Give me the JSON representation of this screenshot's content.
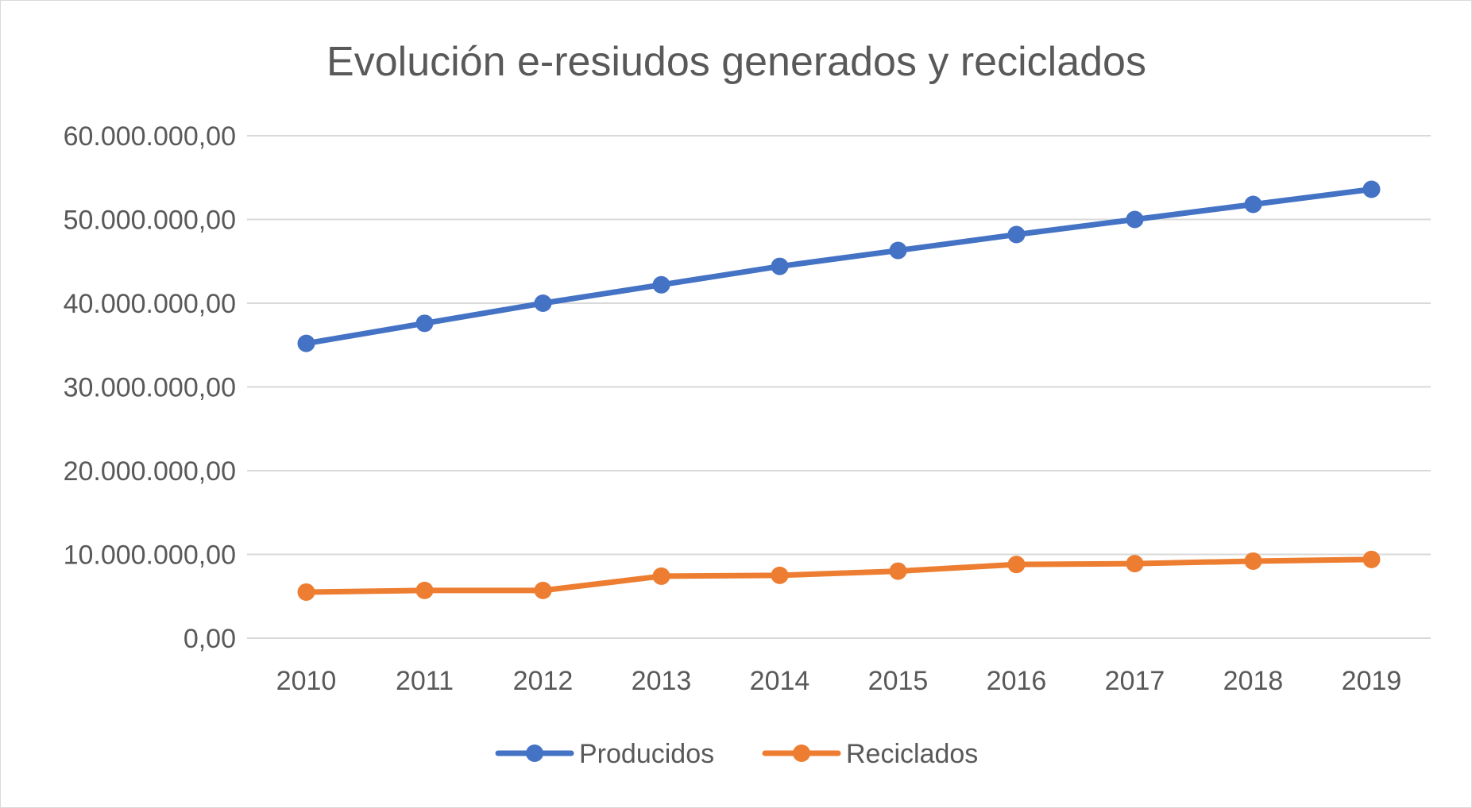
{
  "chart_data": {
    "type": "line",
    "title": "Evolución e-resiudos generados  y reciclados",
    "xlabel": "",
    "ylabel": "",
    "categories": [
      "2010",
      "2011",
      "2012",
      "2013",
      "2014",
      "2015",
      "2016",
      "2017",
      "2018",
      "2019"
    ],
    "series": [
      {
        "name": "Producidos",
        "color": "#4472c4",
        "values": [
          35200000,
          37600000,
          40000000,
          42200000,
          44400000,
          46300000,
          48200000,
          50000000,
          51800000,
          53600000
        ]
      },
      {
        "name": "Reciclados",
        "color": "#ed7d31",
        "values": [
          5500000,
          5700000,
          5700000,
          7400000,
          7500000,
          8000000,
          8800000,
          8900000,
          9200000,
          9400000
        ]
      }
    ],
    "ylim": [
      0,
      60000000
    ],
    "yticks": [
      0,
      10000000,
      20000000,
      30000000,
      40000000,
      50000000,
      60000000
    ],
    "ytick_labels": [
      "0,00",
      "10.000.000,00",
      "20.000.000,00",
      "30.000.000,00",
      "40.000.000,00",
      "50.000.000,00",
      "60.000.000,00"
    ],
    "grid": true,
    "legend_position": "bottom"
  }
}
